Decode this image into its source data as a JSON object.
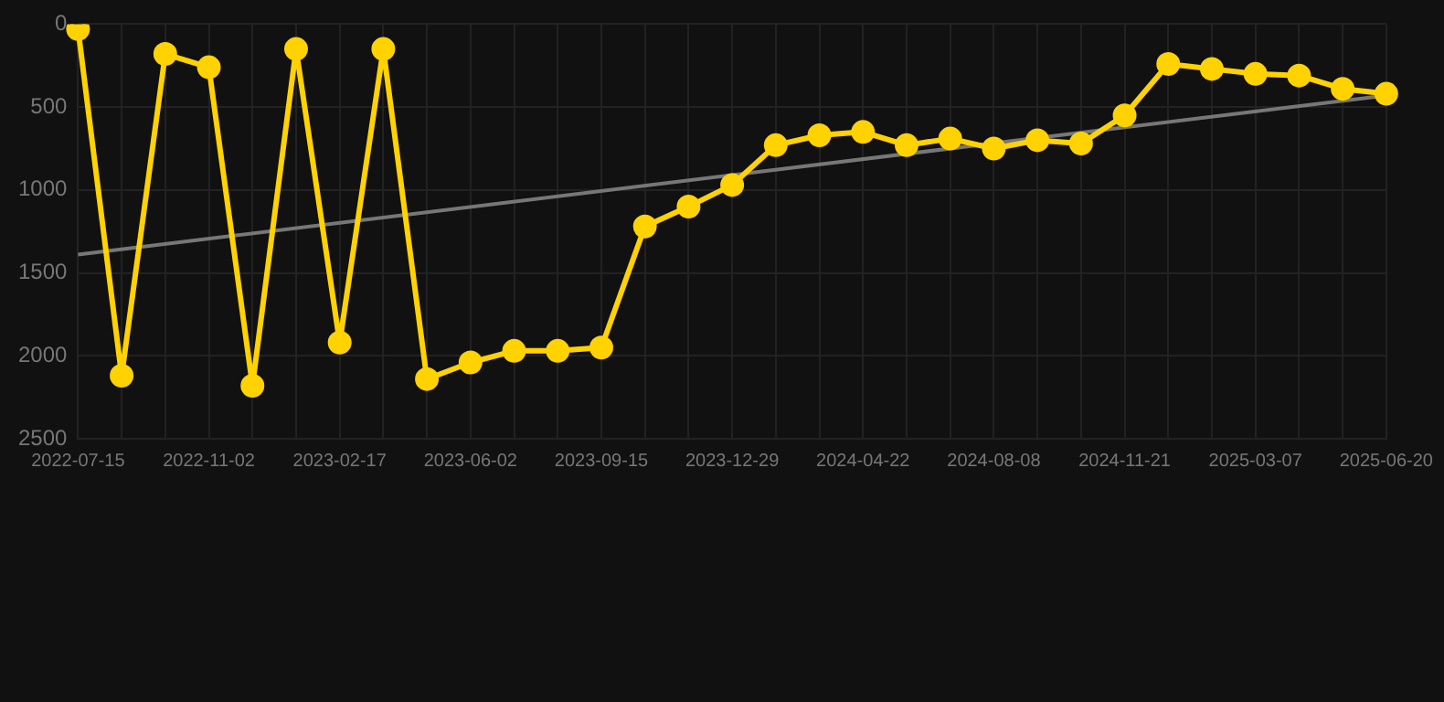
{
  "chart_data": {
    "type": "line",
    "categories": [
      "2022-07-15",
      null,
      null,
      "2022-11-02",
      null,
      null,
      "2023-02-17",
      null,
      null,
      "2023-06-02",
      null,
      null,
      "2023-09-15",
      null,
      null,
      "2023-12-29",
      null,
      null,
      "2024-04-22",
      null,
      null,
      "2024-08-08",
      null,
      null,
      "2024-11-21",
      null,
      null,
      "2025-03-07",
      null,
      null,
      "2025-06-20"
    ],
    "series": [
      {
        "color": "#ffd200",
        "marker": "circle",
        "values": [
          30,
          2120,
          180,
          260,
          2180,
          150,
          1920,
          150,
          2140,
          2040,
          1970,
          1970,
          1950,
          1220,
          1100,
          970,
          730,
          670,
          650,
          730,
          690,
          750,
          700,
          720,
          550,
          240,
          270,
          300,
          310,
          390,
          420
        ]
      },
      {
        "type": "line",
        "color": "#777777",
        "marker": "none",
        "values": [
          1390,
          null,
          null,
          null,
          null,
          null,
          null,
          null,
          null,
          null,
          null,
          null,
          null,
          null,
          null,
          null,
          null,
          null,
          null,
          null,
          null,
          null,
          null,
          null,
          null,
          null,
          null,
          null,
          null,
          null,
          430
        ]
      }
    ],
    "ylim": [
      2500,
      0
    ],
    "yticks": [
      0,
      500,
      1000,
      1500,
      2000,
      2500
    ],
    "grid": true,
    "legend": false
  }
}
